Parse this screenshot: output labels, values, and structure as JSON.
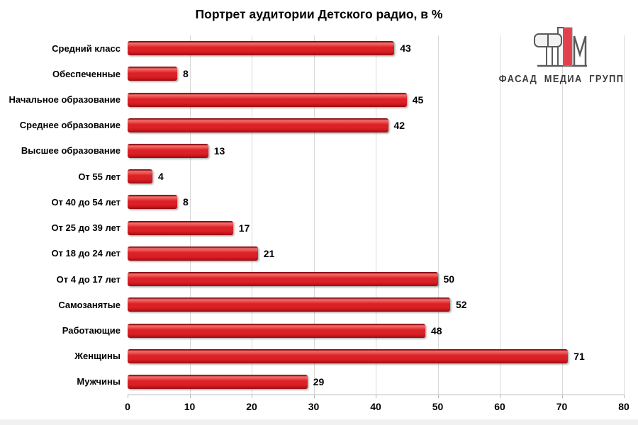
{
  "title": "Портрет аудитории Детского радио, в %",
  "logo": {
    "text": "ФАСАД МЕДИА ГРУПП",
    "mark": "fasad-media-group-monogram",
    "mark_red": "#e2404b",
    "mark_outline": "#5a5a5a"
  },
  "chart_data": {
    "type": "bar",
    "orientation": "horizontal",
    "title": "Портрет аудитории Детского радио, в %",
    "categories": [
      "Средний класс",
      "Обеспеченные",
      "Начальное образование",
      "Среднее образование",
      "Высшее образование",
      "От 55 лет",
      "От 40 до 54 лет",
      "От 25 до 39 лет",
      "От 18 до 24 лет",
      "От 4 до 17 лет",
      "Самозанятые",
      "Работающие",
      "Женщины",
      "Мужчины"
    ],
    "values": [
      43,
      8,
      45,
      42,
      13,
      4,
      8,
      17,
      21,
      50,
      52,
      48,
      71,
      29
    ],
    "xlim": [
      0,
      80
    ],
    "x_ticks": [
      0,
      10,
      20,
      30,
      40,
      50,
      60,
      70,
      80
    ],
    "grid": true,
    "legend": false,
    "value_labels": true,
    "bar_color": "#DB2026",
    "bar_highlight": "#F4716B",
    "bar_top_edge": "#8A0D11",
    "bar_bottom_edge": "#8F0E12"
  },
  "colors": {
    "grid": "#d9d9d9",
    "axis": "#b7b7b7",
    "text": "#000000",
    "background": "#ffffff",
    "bottom_strip": "#f1f1f1"
  }
}
